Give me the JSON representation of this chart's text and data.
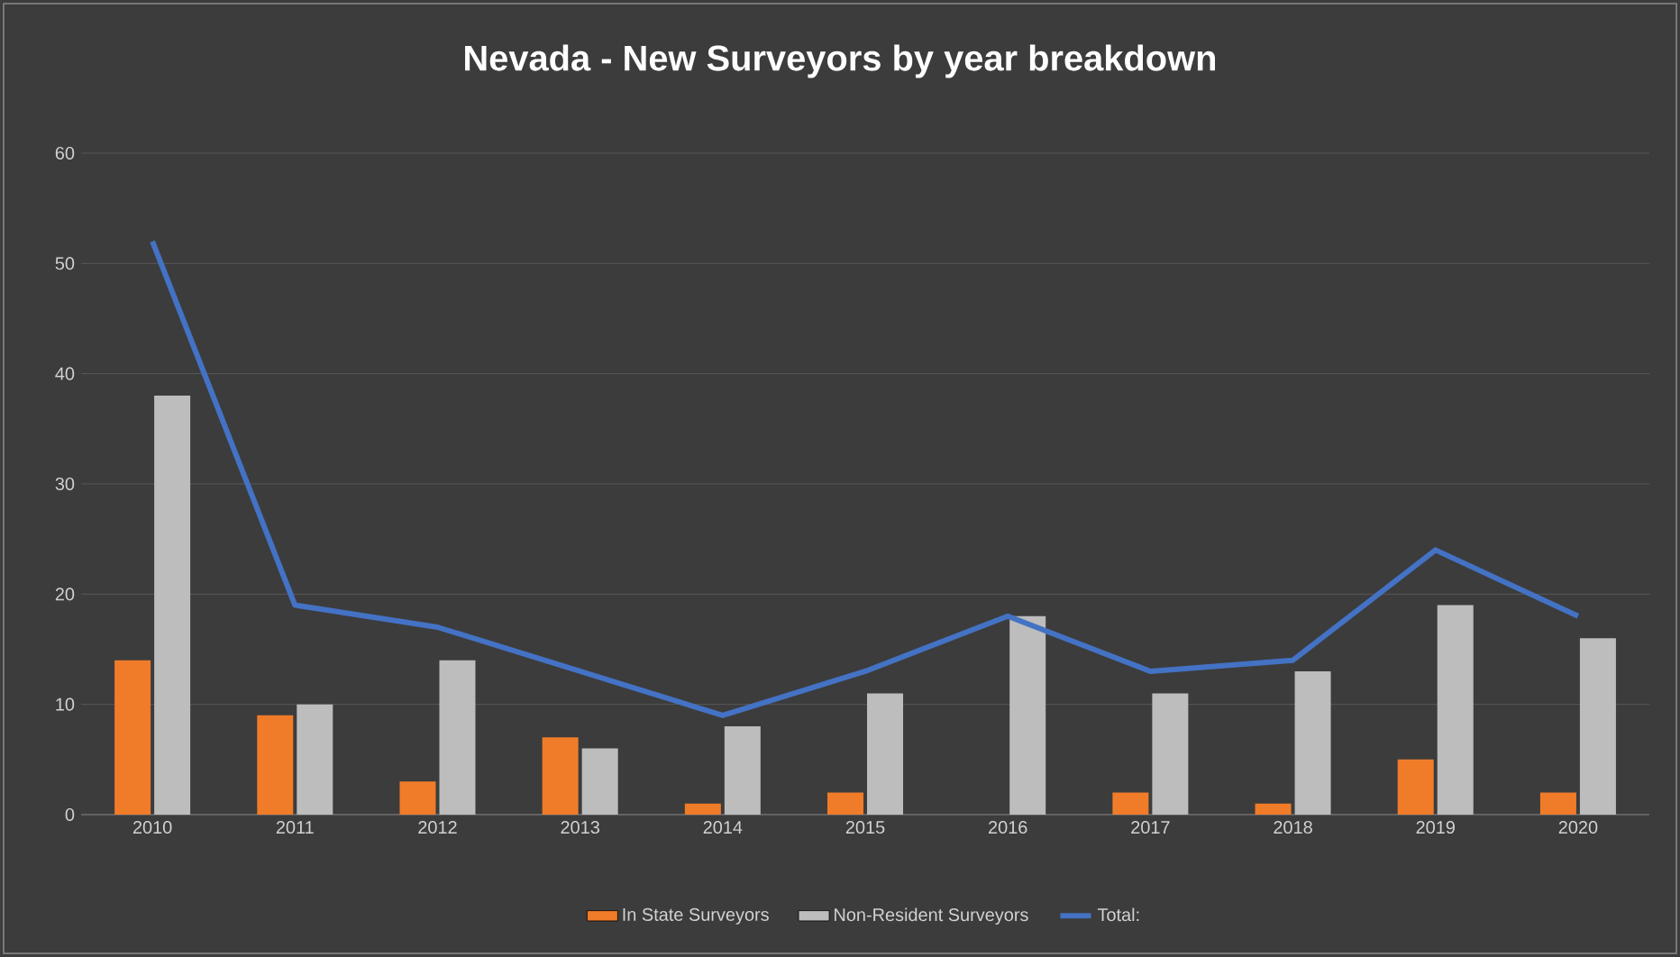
{
  "chart_data": {
    "type": "bar",
    "title": "Nevada - New Surveyors by year breakdown",
    "categories": [
      "2010",
      "2011",
      "2012",
      "2013",
      "2014",
      "2015",
      "2016",
      "2017",
      "2018",
      "2019",
      "2020"
    ],
    "series": [
      {
        "name": "In State Surveyors",
        "color": "#f07c2a",
        "values": [
          14,
          9,
          3,
          7,
          1,
          2,
          0,
          2,
          1,
          5,
          2
        ]
      },
      {
        "name": "Non-Resident Surveyors",
        "color": "#bdbdbd",
        "values": [
          38,
          10,
          14,
          6,
          8,
          11,
          18,
          11,
          13,
          19,
          16
        ]
      },
      {
        "name": "Total:",
        "type": "line",
        "color": "#4472c4",
        "values": [
          52,
          19,
          17,
          13,
          9,
          13,
          18,
          13,
          14,
          24,
          18
        ]
      }
    ],
    "ylim": [
      0,
      60
    ],
    "yticks": [
      0,
      10,
      20,
      30,
      40,
      50,
      60
    ],
    "grid": "y",
    "legend": "bottom"
  }
}
